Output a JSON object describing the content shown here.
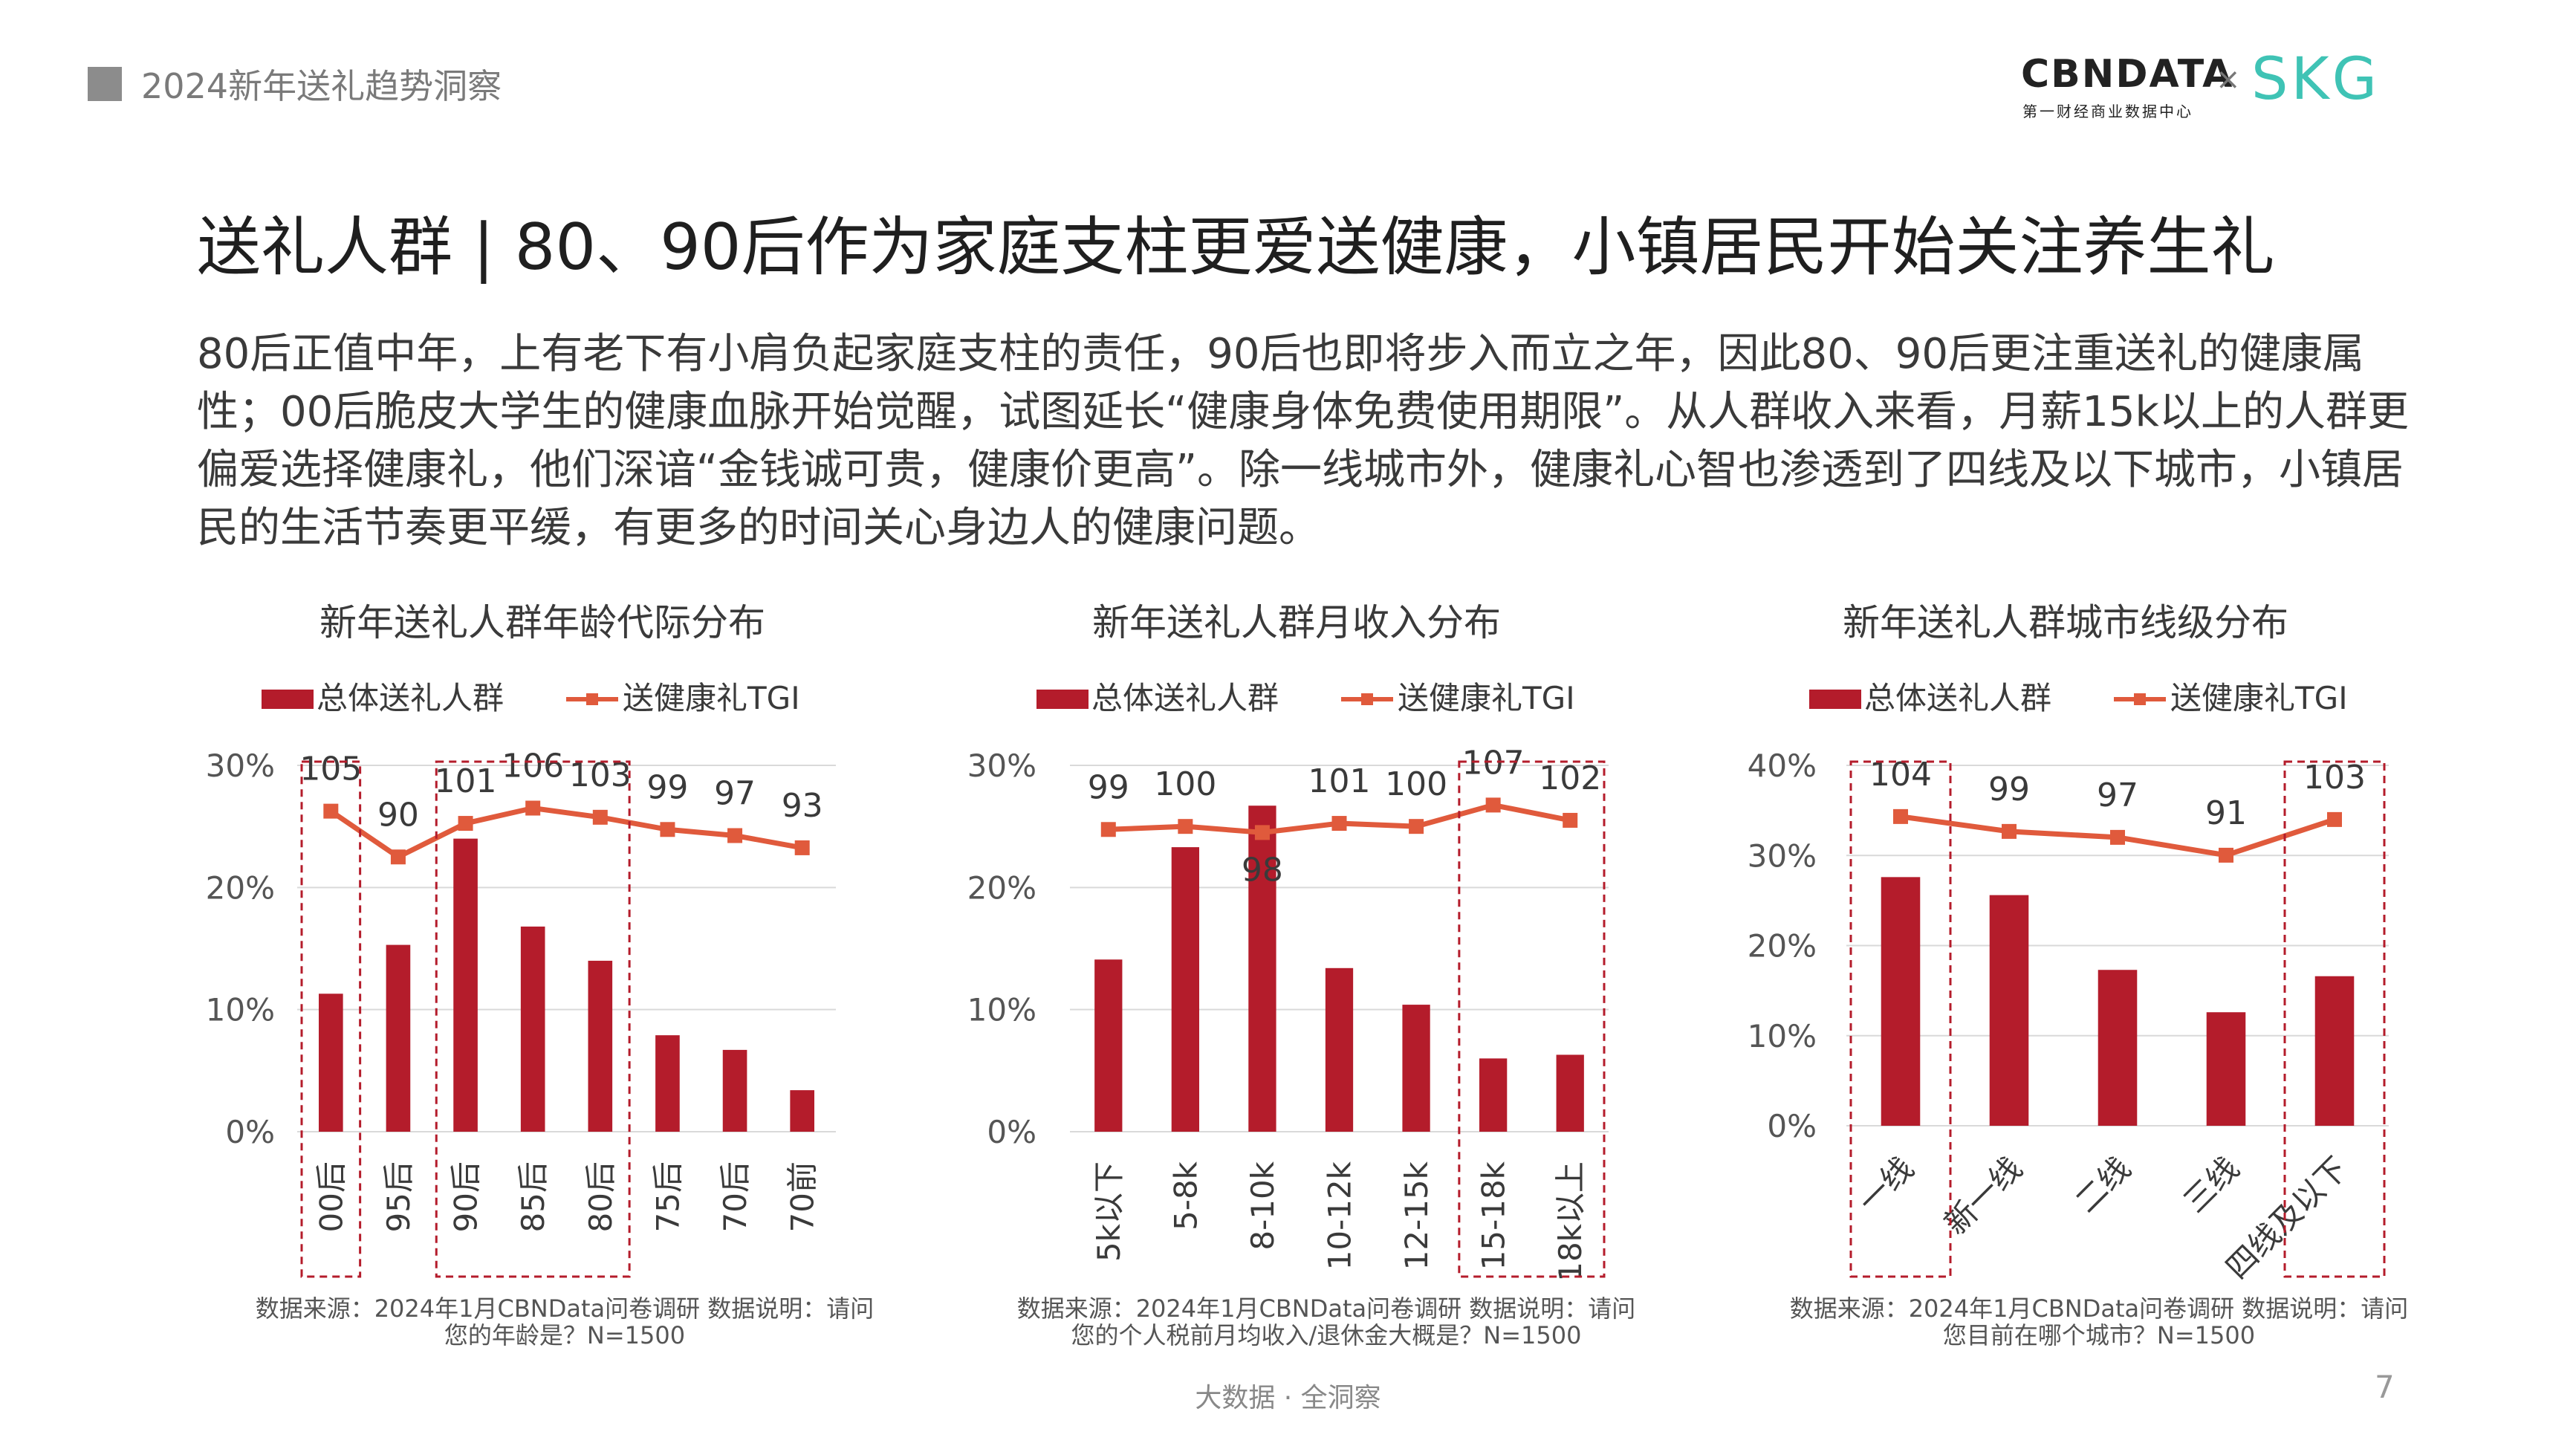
{
  "header": {
    "title": "2024新年送礼趋势洞察"
  },
  "logos": {
    "cbn": "CBNDATA",
    "cbn_sub": "第一财经商业数据中心",
    "times": "×",
    "skg": "SKG"
  },
  "main_title": "送礼人群 | 80、90后作为家庭支柱更爱送健康，小镇居民开始关注养生礼",
  "paragraph": "80后正值中年，上有老下有小肩负起家庭支柱的责任，90后也即将步入而立之年，因此80、90后更注重送礼的健康属性；00后脆皮大学生的健康血脉开始觉醒，试图延长“健康身体免费使用期限”。从人群收入来看，月薪15k以上的人群更偏爱选择健康礼，他们深谙“金钱诚可贵，健康价更高”。除一线城市外，健康礼心智也渗透到了四线及以下城市，小镇居民的生活节奏更平缓，有更多的时间关心身边人的健康问题。",
  "colors": {
    "bar": "#b41c2b",
    "line": "#e05a3c",
    "box": "#b41c2b",
    "grid": "#d9d9d9"
  },
  "chart_data": [
    {
      "type": "bar",
      "title": "新年送礼人群年龄代际分布",
      "categories": [
        "00后",
        "95后",
        "90后",
        "85后",
        "80后",
        "75后",
        "70后",
        "70前"
      ],
      "series": [
        {
          "name": "总体送礼人群",
          "type": "bar",
          "values": [
            11.3,
            15.3,
            24.0,
            16.8,
            14.0,
            7.9,
            6.7,
            3.4
          ]
        },
        {
          "name": "送健康礼TGI",
          "type": "line",
          "values": [
            105,
            90,
            101,
            106,
            103,
            99,
            97,
            93
          ]
        }
      ],
      "ylim": [
        0,
        30
      ],
      "yticks": [
        "0%",
        "10%",
        "20%",
        "30%"
      ],
      "highlight_groups": [
        [
          0,
          0
        ],
        [
          2,
          4
        ]
      ],
      "note": "数据来源：2024年1月CBNData问卷调研  数据说明：请问您的年龄是？N=1500"
    },
    {
      "type": "bar",
      "title": "新年送礼人群月收入分布",
      "categories": [
        "5k以下",
        "5-8k",
        "8-10k",
        "10-12k",
        "12-15k",
        "15-18k",
        "18k以上"
      ],
      "series": [
        {
          "name": "总体送礼人群",
          "type": "bar",
          "values": [
            14.1,
            23.3,
            26.7,
            13.4,
            10.4,
            6.0,
            6.3
          ]
        },
        {
          "name": "送健康礼TGI",
          "type": "line",
          "values": [
            99,
            100,
            98,
            101,
            100,
            107,
            102
          ]
        }
      ],
      "ylim": [
        0,
        30
      ],
      "yticks": [
        "0%",
        "10%",
        "20%",
        "30%"
      ],
      "highlight_groups": [
        [
          5,
          6
        ]
      ],
      "note": "数据来源：2024年1月CBNData问卷调研  数据说明：请问您的个人税前月均收入/退休金大概是？N=1500"
    },
    {
      "type": "bar",
      "title": "新年送礼人群城市线级分布",
      "categories": [
        "一线",
        "新一线",
        "二线",
        "三线",
        "四线及以下"
      ],
      "series": [
        {
          "name": "总体送礼人群",
          "type": "bar",
          "values": [
            27.6,
            25.6,
            17.3,
            12.6,
            16.6
          ]
        },
        {
          "name": "送健康礼TGI",
          "type": "line",
          "values": [
            104,
            99,
            97,
            91,
            103
          ]
        }
      ],
      "ylim": [
        0,
        40
      ],
      "yticks": [
        "0%",
        "10%",
        "20%",
        "30%",
        "40%"
      ],
      "highlight_groups": [
        [
          0,
          0
        ],
        [
          4,
          4
        ]
      ],
      "note": "数据来源：2024年1月CBNData问卷调研  数据说明：请问您目前在哪个城市？N=1500"
    }
  ],
  "footer": "大数据 · 全洞察",
  "page_number": "7"
}
